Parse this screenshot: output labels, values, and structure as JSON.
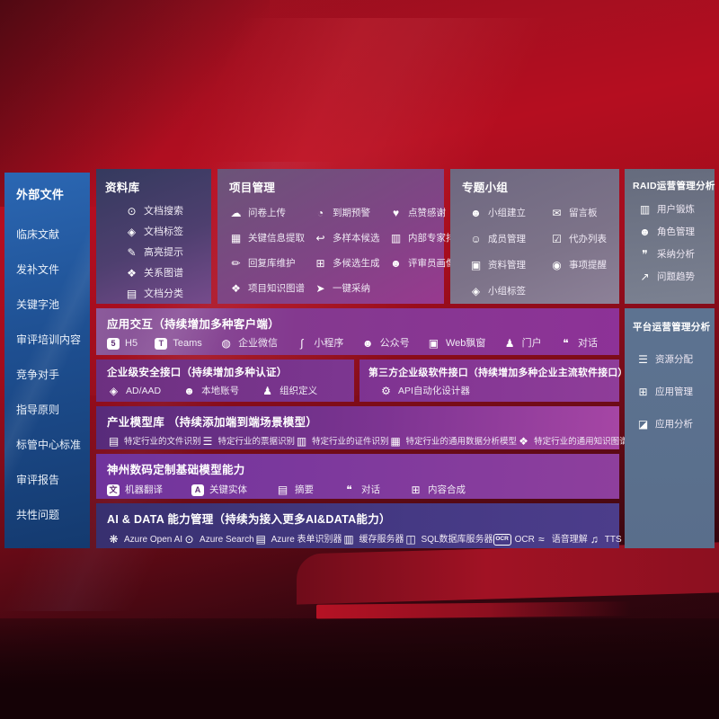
{
  "sidebar": {
    "title": "外部文件",
    "items": [
      "临床文献",
      "发补文件",
      "关键字池",
      "审评培训内容",
      "竞争对手",
      "指导原则",
      "标管中心标准",
      "审评报告",
      "共性问题"
    ]
  },
  "sections": {
    "library": {
      "title": "资料库",
      "items": [
        {
          "label": "文档搜索",
          "icon": "doc-search-icon",
          "glyph": "⊙"
        },
        {
          "label": "文档标签",
          "icon": "doc-tag-icon",
          "glyph": "◈"
        },
        {
          "label": "高亮提示",
          "icon": "highlight-icon",
          "glyph": "✎"
        },
        {
          "label": "关系图谱",
          "icon": "relation-graph-icon",
          "glyph": "❖"
        },
        {
          "label": "文档分类",
          "icon": "doc-classify-icon",
          "glyph": "▤"
        }
      ]
    },
    "project": {
      "title": "项目管理",
      "items": [
        {
          "label": "问卷上传",
          "icon": "cloud-upload-icon",
          "glyph": "☁"
        },
        {
          "label": "到期预警",
          "icon": "alarm-icon",
          "glyph": "◔"
        },
        {
          "label": "点赞感谢",
          "icon": "thumbs-up-icon",
          "glyph": "♥"
        },
        {
          "label": "关键信息提取",
          "icon": "info-extract-icon",
          "glyph": "▦"
        },
        {
          "label": "多样本候选",
          "icon": "multi-sample-icon",
          "glyph": "↩"
        },
        {
          "label": "内部专家排名",
          "icon": "expert-ranking-icon",
          "glyph": "▥"
        },
        {
          "label": "回复库维护",
          "icon": "reply-maintain-icon",
          "glyph": "✏"
        },
        {
          "label": "多候选生成",
          "icon": "multi-generate-icon",
          "glyph": "⊞"
        },
        {
          "label": "评审员画像",
          "icon": "reviewer-profile-icon",
          "glyph": "☻"
        },
        {
          "label": "项目知识图谱",
          "icon": "knowledge-graph-icon",
          "glyph": "❖"
        },
        {
          "label": "一键采纳",
          "icon": "one-click-adopt-icon",
          "glyph": "➤"
        }
      ]
    },
    "group": {
      "title": "专题小组",
      "items": [
        {
          "label": "小组建立",
          "icon": "group-create-icon",
          "glyph": "☻"
        },
        {
          "label": "留言板",
          "icon": "message-board-icon",
          "glyph": "✉"
        },
        {
          "label": "成员管理",
          "icon": "member-manage-icon",
          "glyph": "☺"
        },
        {
          "label": "代办列表",
          "icon": "todo-list-icon",
          "glyph": "☑"
        },
        {
          "label": "资料管理",
          "icon": "material-manage-icon",
          "glyph": "▣"
        },
        {
          "label": "事项提醒",
          "icon": "reminder-bell-icon",
          "glyph": "◉"
        },
        {
          "label": "小组标签",
          "icon": "group-tag-icon",
          "glyph": "◈"
        }
      ]
    },
    "raid": {
      "title": "RAID运营管理分析",
      "items": [
        {
          "label": "用户锻炼",
          "icon": "user-training-icon",
          "glyph": "▥"
        },
        {
          "label": "角色管理",
          "icon": "role-manage-icon",
          "glyph": "☻"
        },
        {
          "label": "采纳分析",
          "icon": "adoption-analysis-icon",
          "glyph": "❞"
        },
        {
          "label": "问题趋势",
          "icon": "issue-trend-icon",
          "glyph": "↗"
        }
      ]
    },
    "platform": {
      "title": "平台运营管理分析",
      "items": [
        {
          "label": "资源分配",
          "icon": "resource-allocation-icon",
          "glyph": "☰"
        },
        {
          "label": "应用管理",
          "icon": "app-manage-icon",
          "glyph": "⊞"
        },
        {
          "label": "应用分析",
          "icon": "app-analysis-icon",
          "glyph": "◪"
        }
      ]
    },
    "interaction": {
      "title": "应用交互（持续增加多种客户端）",
      "items": [
        {
          "label": "H5",
          "icon": "h5-icon",
          "glyph": "5",
          "chip": "solid"
        },
        {
          "label": "Teams",
          "icon": "teams-icon",
          "glyph": "T",
          "chip": "solid"
        },
        {
          "label": "企业微信",
          "icon": "wechat-work-icon",
          "glyph": "◍"
        },
        {
          "label": "小程序",
          "icon": "miniprogram-icon",
          "glyph": "∫"
        },
        {
          "label": "公众号",
          "icon": "official-account-icon",
          "glyph": "☻"
        },
        {
          "label": "Web飘窗",
          "icon": "web-popup-icon",
          "glyph": "▣"
        },
        {
          "label": "门户",
          "icon": "portal-icon",
          "glyph": "♟"
        },
        {
          "label": "对话",
          "icon": "chat-icon",
          "glyph": "❝"
        }
      ]
    },
    "security": {
      "title": "企业级安全接口（持续增加多种认证）",
      "items": [
        {
          "label": "AD/AAD",
          "icon": "ad-aad-icon",
          "glyph": "◈"
        },
        {
          "label": "本地账号",
          "icon": "local-account-icon",
          "glyph": "☻"
        },
        {
          "label": "组织定义",
          "icon": "org-define-icon",
          "glyph": "♟"
        }
      ]
    },
    "thirdparty": {
      "title": "第三方企业级软件接口（持续增加多种企业主流软件接口）",
      "items": [
        {
          "label": "API自动化设计器",
          "icon": "api-designer-icon",
          "glyph": "⚙"
        }
      ]
    },
    "industry": {
      "title": "产业模型库 （持续添加端到端场景模型）",
      "items": [
        {
          "label": "特定行业的文件识别",
          "icon": "file-recognition-icon",
          "glyph": "▤"
        },
        {
          "label": "特定行业的票据识别",
          "icon": "invoice-recognition-icon",
          "glyph": "☰"
        },
        {
          "label": "特定行业的证件识别",
          "icon": "id-recognition-icon",
          "glyph": "▥"
        },
        {
          "label": "特定行业的通用数据分析模型",
          "icon": "data-analysis-model-icon",
          "glyph": "▦"
        },
        {
          "label": "特定行业的通用知识图谱模型",
          "icon": "knowledge-graph-model-icon",
          "glyph": "❖"
        }
      ]
    },
    "basemodels": {
      "title": "神州数码定制基础模型能力",
      "items": [
        {
          "label": "机器翻译",
          "icon": "machine-translation-icon",
          "glyph": "文",
          "chip": "solid"
        },
        {
          "label": "关键实体",
          "icon": "key-entity-icon",
          "glyph": "A",
          "chip": "solid"
        },
        {
          "label": "摘要",
          "icon": "summary-icon",
          "glyph": "▤"
        },
        {
          "label": "对话",
          "icon": "dialogue-icon",
          "glyph": "❝"
        },
        {
          "label": "内容合成",
          "icon": "content-synthesis-icon",
          "glyph": "⊞"
        }
      ]
    },
    "aidata": {
      "title": "AI & DATA 能力管理（持续为接入更多AI&DATA能力）",
      "items": [
        {
          "label": "Azure Open AI",
          "icon": "openai-icon",
          "glyph": "❋"
        },
        {
          "label": "Azure Search",
          "icon": "azure-search-icon",
          "glyph": "⊙"
        },
        {
          "label": "Azure 表单识别器",
          "icon": "form-recognizer-icon",
          "glyph": "▤"
        },
        {
          "label": "缓存服务器",
          "icon": "cache-server-icon",
          "glyph": "▥"
        },
        {
          "label": "SQL数据库服务器",
          "icon": "sql-server-icon",
          "glyph": "◫"
        },
        {
          "label": "OCR",
          "icon": "ocr-icon",
          "glyph": "OCR",
          "chip": "outline"
        },
        {
          "label": "语音理解",
          "icon": "speech-understanding-icon",
          "glyph": "≈"
        },
        {
          "label": "TTS",
          "icon": "tts-icon",
          "glyph": "♫"
        }
      ]
    }
  }
}
